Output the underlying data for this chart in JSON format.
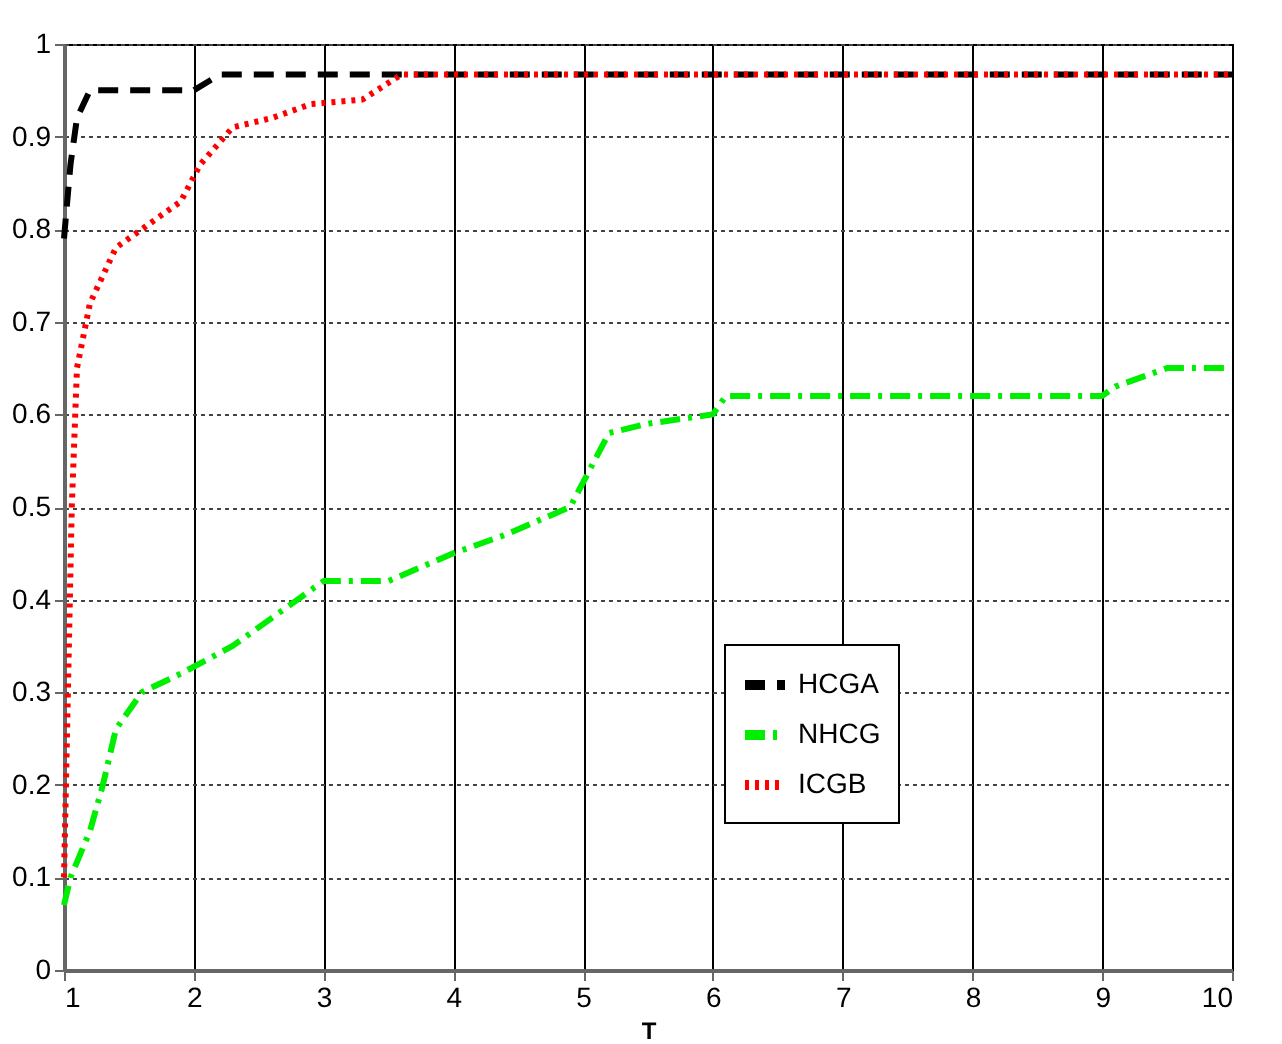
{
  "chart_data": {
    "type": "line",
    "xlabel": "T",
    "xlim": [
      1,
      10
    ],
    "xticks": [
      1,
      2,
      3,
      4,
      5,
      6,
      7,
      8,
      9,
      10
    ],
    "ylim": [
      0,
      1
    ],
    "yticks": [
      0,
      0.1,
      0.2,
      0.3,
      0.4,
      0.5,
      0.6,
      0.7,
      0.8,
      0.9,
      1
    ],
    "grid": true,
    "legend": "right",
    "series": [
      {
        "name": "HCGA",
        "color": "#000000",
        "line_style": "dashed",
        "x": [
          1,
          1.05,
          1.1,
          1.2,
          2,
          2.2,
          10
        ],
        "values": [
          0.79,
          0.87,
          0.92,
          0.95,
          0.95,
          0.967,
          0.967
        ]
      },
      {
        "name": "NHCG",
        "color": "#00ee00",
        "line_style": "dashdot",
        "x": [
          1,
          1.05,
          1.2,
          1.3,
          1.4,
          1.6,
          1.9,
          2.3,
          2.6,
          3,
          3.5,
          4,
          4.4,
          4.9,
          5.2,
          5.5,
          6,
          6.1,
          9,
          9.1,
          9.5,
          10
        ],
        "values": [
          0.07,
          0.1,
          0.15,
          0.2,
          0.26,
          0.3,
          0.32,
          0.35,
          0.38,
          0.42,
          0.42,
          0.45,
          0.47,
          0.5,
          0.58,
          0.59,
          0.6,
          0.62,
          0.62,
          0.63,
          0.65,
          0.65
        ]
      },
      {
        "name": "ICGB",
        "color": "#ff0000",
        "line_style": "dotted",
        "x": [
          1,
          1.03,
          1.06,
          1.1,
          1.2,
          1.4,
          1.7,
          1.9,
          2.05,
          2.3,
          2.6,
          2.9,
          3.3,
          3.6,
          10
        ],
        "values": [
          0.1,
          0.3,
          0.5,
          0.65,
          0.72,
          0.78,
          0.81,
          0.83,
          0.87,
          0.91,
          0.92,
          0.935,
          0.94,
          0.967,
          0.967
        ]
      }
    ]
  }
}
